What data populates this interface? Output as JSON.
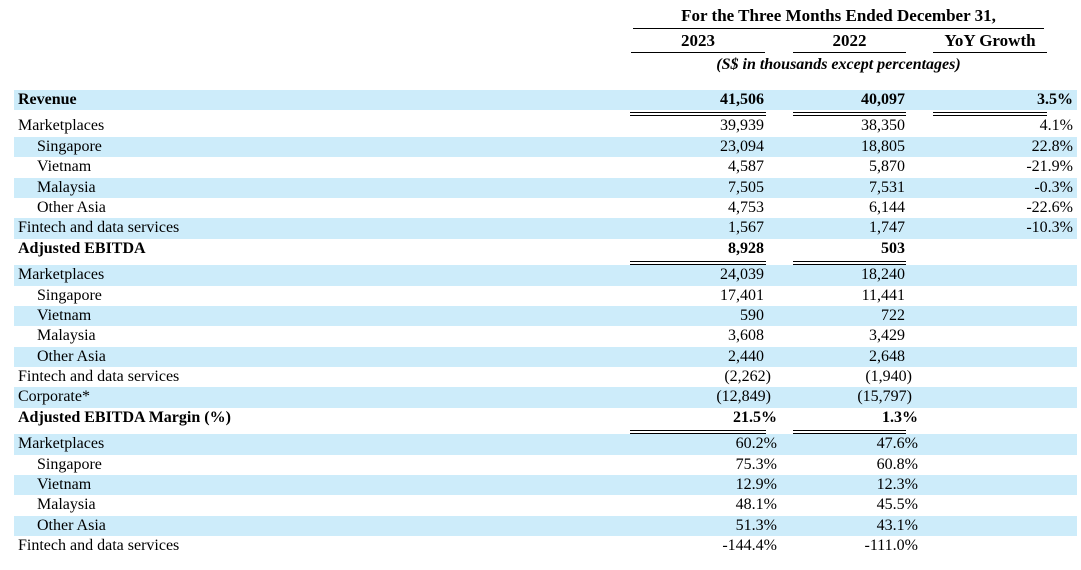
{
  "header": {
    "period_title": "For the Three Months Ended December 31,",
    "columns": [
      "2023",
      "2022",
      "YoY Growth"
    ],
    "note": "(S$ in thousands except percentages)"
  },
  "colors": {
    "row_stripe": "#cdecfa",
    "text": "#000000",
    "background": "#ffffff",
    "rule": "#000000"
  },
  "table": {
    "rows": [
      {
        "label": "Revenue",
        "v2023": "41,506",
        "v2022": "40,097",
        "yoy": "3.5%",
        "style": "section",
        "indent": 0,
        "stripe": true
      },
      {
        "label": "Marketplaces",
        "v2023": "39,939",
        "v2022": "38,350",
        "yoy": "4.1%",
        "style": "normal",
        "indent": 0,
        "stripe": false
      },
      {
        "label": "Singapore",
        "v2023": "23,094",
        "v2022": "18,805",
        "yoy": "22.8%",
        "style": "normal",
        "indent": 1,
        "stripe": true
      },
      {
        "label": "Vietnam",
        "v2023": "4,587",
        "v2022": "5,870",
        "yoy": "-21.9%",
        "style": "normal",
        "indent": 1,
        "stripe": false
      },
      {
        "label": "Malaysia",
        "v2023": "7,505",
        "v2022": "7,531",
        "yoy": "-0.3%",
        "style": "normal",
        "indent": 1,
        "stripe": true
      },
      {
        "label": "Other Asia",
        "v2023": "4,753",
        "v2022": "6,144",
        "yoy": "-22.6%",
        "style": "normal",
        "indent": 1,
        "stripe": false
      },
      {
        "label": "Fintech and data services",
        "v2023": "1,567",
        "v2022": "1,747",
        "yoy": "-10.3%",
        "style": "normal",
        "indent": 0,
        "stripe": true
      },
      {
        "label": "Adjusted EBITDA",
        "v2023": "8,928",
        "v2022": "503",
        "yoy": "",
        "style": "section",
        "indent": 0,
        "stripe": false
      },
      {
        "label": "Marketplaces",
        "v2023": "24,039",
        "v2022": "18,240",
        "yoy": "",
        "style": "normal",
        "indent": 0,
        "stripe": true
      },
      {
        "label": "Singapore",
        "v2023": "17,401",
        "v2022": "11,441",
        "yoy": "",
        "style": "normal",
        "indent": 1,
        "stripe": false
      },
      {
        "label": "Vietnam",
        "v2023": "590",
        "v2022": "722",
        "yoy": "",
        "style": "normal",
        "indent": 1,
        "stripe": true
      },
      {
        "label": "Malaysia",
        "v2023": "3,608",
        "v2022": "3,429",
        "yoy": "",
        "style": "normal",
        "indent": 1,
        "stripe": false
      },
      {
        "label": "Other Asia",
        "v2023": "2,440",
        "v2022": "2,648",
        "yoy": "",
        "style": "normal",
        "indent": 1,
        "stripe": true
      },
      {
        "label": "Fintech and data services",
        "v2023": "(2,262)",
        "v2022": "(1,940)",
        "yoy": "",
        "style": "normal",
        "indent": 0,
        "stripe": false
      },
      {
        "label": "Corporate*",
        "v2023": "(12,849)",
        "v2022": "(15,797)",
        "yoy": "",
        "style": "normal",
        "indent": 0,
        "stripe": true
      },
      {
        "label": "Adjusted EBITDA Margin (%)",
        "v2023": "21.5%",
        "v2022": "1.3%",
        "yoy": "",
        "style": "section",
        "indent": 0,
        "stripe": false
      },
      {
        "label": "Marketplaces",
        "v2023": "60.2%",
        "v2022": "47.6%",
        "yoy": "",
        "style": "normal",
        "indent": 0,
        "stripe": true
      },
      {
        "label": "Singapore",
        "v2023": "75.3%",
        "v2022": "60.8%",
        "yoy": "",
        "style": "normal",
        "indent": 1,
        "stripe": false
      },
      {
        "label": "Vietnam",
        "v2023": "12.9%",
        "v2022": "12.3%",
        "yoy": "",
        "style": "normal",
        "indent": 1,
        "stripe": true
      },
      {
        "label": "Malaysia",
        "v2023": "48.1%",
        "v2022": "45.5%",
        "yoy": "",
        "style": "normal",
        "indent": 1,
        "stripe": false
      },
      {
        "label": "Other Asia",
        "v2023": "51.3%",
        "v2022": "43.1%",
        "yoy": "",
        "style": "normal",
        "indent": 1,
        "stripe": true
      },
      {
        "label": "Fintech and data services",
        "v2023": "-144.4%",
        "v2022": "-111.0%",
        "yoy": "",
        "style": "normal",
        "indent": 0,
        "stripe": false
      }
    ]
  }
}
